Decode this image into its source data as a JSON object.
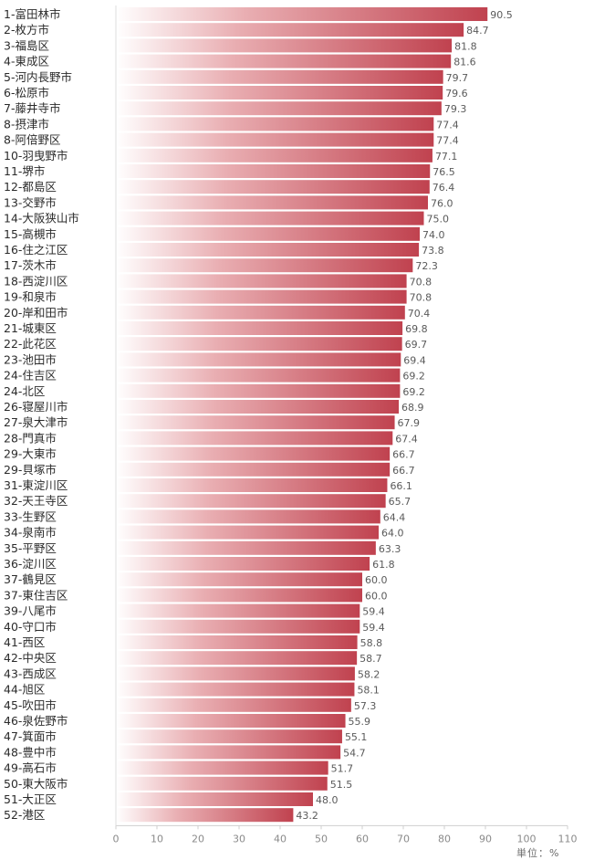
{
  "chart_data": {
    "type": "bar",
    "orientation": "horizontal",
    "categories": [
      "1-富田林市",
      "2-枚方市",
      "3-福島区",
      "4-東成区",
      "5-河内長野市",
      "6-松原市",
      "7-藤井寺市",
      "8-摂津市",
      "8-阿倍野区",
      "10-羽曳野市",
      "11-堺市",
      "12-都島区",
      "13-交野市",
      "14-大阪狭山市",
      "15-高槻市",
      "16-住之江区",
      "17-茨木市",
      "18-西淀川区",
      "19-和泉市",
      "20-岸和田市",
      "21-城東区",
      "22-此花区",
      "23-池田市",
      "24-住吉区",
      "24-北区",
      "26-寝屋川市",
      "27-泉大津市",
      "28-門真市",
      "29-大東市",
      "29-貝塚市",
      "31-東淀川区",
      "32-天王寺区",
      "33-生野区",
      "34-泉南市",
      "35-平野区",
      "36-淀川区",
      "37-鶴見区",
      "37-東住吉区",
      "39-八尾市",
      "40-守口市",
      "41-西区",
      "42-中央区",
      "43-西成区",
      "44-旭区",
      "45-吹田市",
      "46-泉佐野市",
      "47-箕面市",
      "48-豊中市",
      "49-高石市",
      "50-東大阪市",
      "51-大正区",
      "52-港区"
    ],
    "values": [
      90.5,
      84.7,
      81.8,
      81.6,
      79.7,
      79.6,
      79.3,
      77.4,
      77.4,
      77.1,
      76.5,
      76.4,
      76.0,
      75.0,
      74.0,
      73.8,
      72.3,
      70.8,
      70.8,
      70.4,
      69.8,
      69.7,
      69.4,
      69.2,
      69.2,
      68.9,
      67.9,
      67.4,
      66.7,
      66.7,
      66.1,
      65.7,
      64.4,
      64.0,
      63.3,
      61.8,
      60.0,
      60.0,
      59.4,
      59.4,
      58.8,
      58.7,
      58.2,
      58.1,
      57.3,
      55.9,
      55.1,
      54.7,
      51.7,
      51.5,
      48.0,
      43.2
    ],
    "value_labels": [
      "90.5",
      "84.7",
      "81.8",
      "81.6",
      "79.7",
      "79.6",
      "79.3",
      "77.4",
      "77.4",
      "77.1",
      "76.5",
      "76.4",
      "76.0",
      "75.0",
      "74.0",
      "73.8",
      "72.3",
      "70.8",
      "70.8",
      "70.4",
      "69.8",
      "69.7",
      "69.4",
      "69.2",
      "69.2",
      "68.9",
      "67.9",
      "67.4",
      "66.7",
      "66.7",
      "66.1",
      "65.7",
      "64.4",
      "64.0",
      "63.3",
      "61.8",
      "60.0",
      "60.0",
      "59.4",
      "59.4",
      "58.8",
      "58.7",
      "58.2",
      "58.1",
      "57.3",
      "55.9",
      "55.1",
      "54.7",
      "51.7",
      "51.5",
      "48.0",
      "43.2"
    ],
    "xlim": [
      0,
      110
    ],
    "xticks": [
      "0",
      "10",
      "20",
      "30",
      "40",
      "50",
      "60",
      "70",
      "80",
      "90",
      "100",
      "110"
    ],
    "unit_label": "単位：%",
    "grid": false,
    "bar_color": "#c0424f",
    "bar_color_light": "#ffffff"
  }
}
